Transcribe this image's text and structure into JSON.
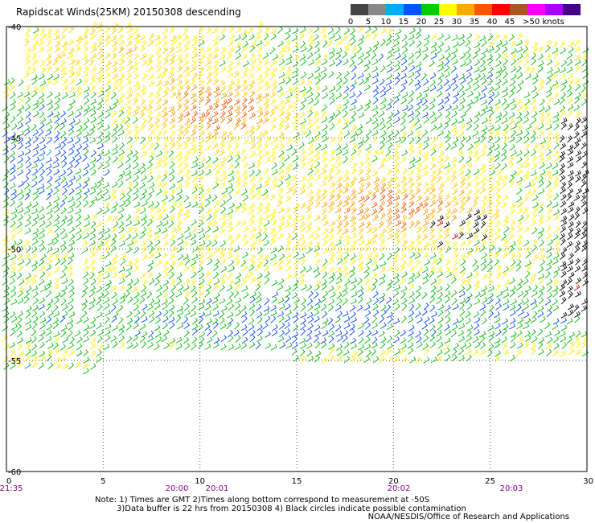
{
  "title": "Rapidscat Winds(25KM) 20150308 descending",
  "scale": {
    "colors": [
      "#444444",
      "#888888",
      "#00aaff",
      "#0055ff",
      "#00cc00",
      "#ffff00",
      "#ffaa00",
      "#ff5500",
      "#ff0000",
      "#aa5522",
      "#ff00ff",
      "#aa00ff",
      "#440088"
    ],
    "labels": [
      "0",
      "5",
      "10",
      "15",
      "20",
      "25",
      "30",
      "35",
      "40",
      "45",
      ">50 knots"
    ]
  },
  "map": {
    "lat_labels": [
      "-40",
      "-45",
      "-50",
      "-55",
      "-60"
    ],
    "lon_labels": [
      "0",
      "5",
      "10",
      "15",
      "20",
      "25",
      "30"
    ],
    "time_labels": [
      "21:35",
      "20:00",
      "20:01",
      "20:02",
      "20:03"
    ],
    "time_color": "#880088",
    "grid": "dotted"
  },
  "notes": {
    "line1": "Note: 1) Times are GMT 2)Times along bottom correspond to measurement at -50S",
    "line2": "3)Data buffer is 22 hrs from 20150308 4) Black circles indicate possible contamination"
  },
  "credit": "NOAA/NESDIS/Office of Research and Applications"
}
